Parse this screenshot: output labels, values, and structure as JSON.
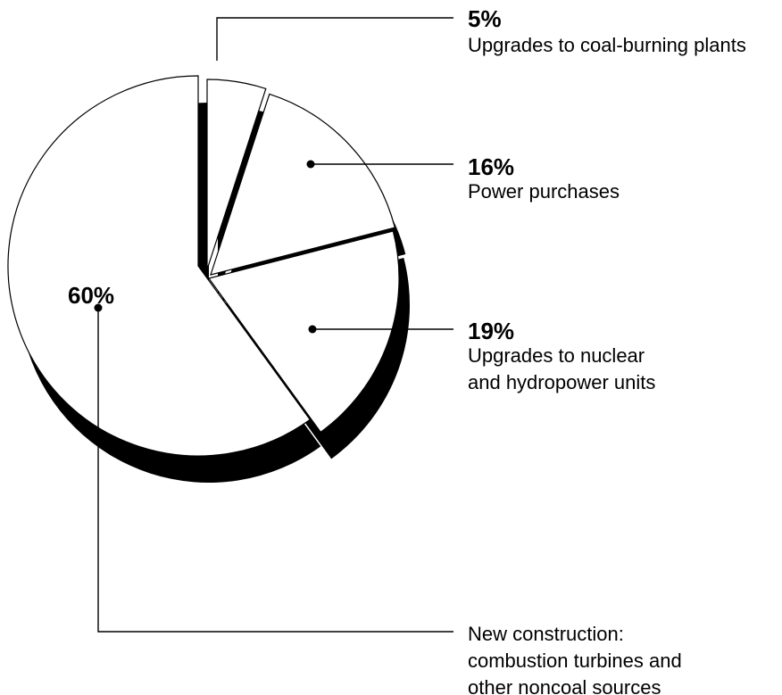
{
  "chart_data": {
    "type": "pie",
    "categories": [
      "Upgrades to coal-burning plants",
      "Power purchases",
      "Upgrades to nuclear and hydropower units",
      "New construction: combustion turbines and other noncoal sources"
    ],
    "values": [
      5,
      16,
      19,
      60
    ],
    "value_labels": [
      "5%",
      "16%",
      "19%",
      "60%"
    ],
    "label_lines": [
      [
        "Upgrades to coal-burning plants"
      ],
      [
        "Power purchases"
      ],
      [
        "Upgrades to nuclear",
        "and hydropower units"
      ],
      [
        "New construction:",
        "combustion turbines and",
        "other noncoal sources"
      ]
    ],
    "style": "exploded 3D pie, white slices with black shadow",
    "colors": {
      "slice": "#ffffff",
      "outline": "#000000",
      "shadow": "#000000"
    }
  }
}
